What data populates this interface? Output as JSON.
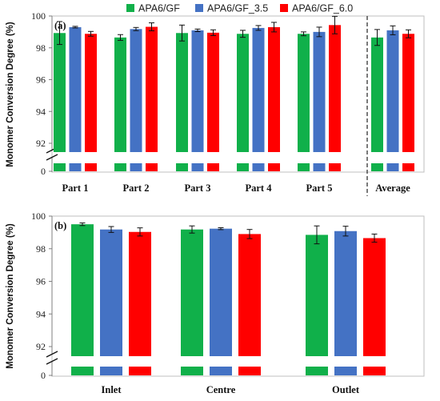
{
  "legend": {
    "items": [
      {
        "name": "APA6/GF",
        "color": "#10B04A"
      },
      {
        "name": "APA6/GF_3.5",
        "color": "#4472C4"
      },
      {
        "name": "APA6/GF_6.0",
        "color": "#FF0000"
      }
    ]
  },
  "chart_data": [
    {
      "type": "bar",
      "panel_label": "(a)",
      "ylabel": "Monomer Conversion Degree (%)",
      "ylim": [
        91,
        100
      ],
      "yticks": [
        "92",
        "94",
        "96",
        "98",
        "100"
      ],
      "broken_axis_low_tick": "0",
      "categories": [
        "Part 1",
        "Part 2",
        "Part 3",
        "Part 4",
        "Part 5",
        "Average"
      ],
      "separator_before_category": "Average",
      "grid": false,
      "legend_position": "top",
      "series": [
        {
          "name": "APA6/GF",
          "values": [
            98.93,
            98.65,
            98.93,
            98.88,
            98.88,
            98.65
          ],
          "errors": [
            0.72,
            0.18,
            0.5,
            0.22,
            0.12,
            0.5
          ]
        },
        {
          "name": "APA6/GF_3.5",
          "values": [
            99.3,
            99.18,
            99.1,
            99.25,
            99.0,
            99.1
          ],
          "errors": [
            0.05,
            0.1,
            0.08,
            0.15,
            0.3,
            0.28
          ]
        },
        {
          "name": "APA6/GF_6.0",
          "values": [
            98.88,
            99.32,
            98.95,
            99.3,
            99.43,
            98.88
          ],
          "errors": [
            0.15,
            0.25,
            0.18,
            0.3,
            0.55,
            0.25
          ]
        }
      ]
    },
    {
      "type": "bar",
      "panel_label": "(b)",
      "ylabel": "Monomer Conversion Degree (%)",
      "ylim": [
        91,
        100
      ],
      "yticks": [
        "92",
        "94",
        "96",
        "98",
        "100"
      ],
      "broken_axis_low_tick": "0",
      "categories": [
        "Inlet",
        "Centre",
        "Outlet"
      ],
      "grid": false,
      "series": [
        {
          "name": "APA6/GF",
          "values": [
            99.5,
            99.18,
            98.85
          ],
          "errors": [
            0.08,
            0.22,
            0.55
          ]
        },
        {
          "name": "APA6/GF_3.5",
          "values": [
            99.18,
            99.23,
            99.08
          ],
          "errors": [
            0.18,
            0.06,
            0.3
          ]
        },
        {
          "name": "APA6/GF_6.0",
          "values": [
            99.03,
            98.9,
            98.65
          ],
          "errors": [
            0.25,
            0.28,
            0.25
          ]
        }
      ]
    }
  ]
}
